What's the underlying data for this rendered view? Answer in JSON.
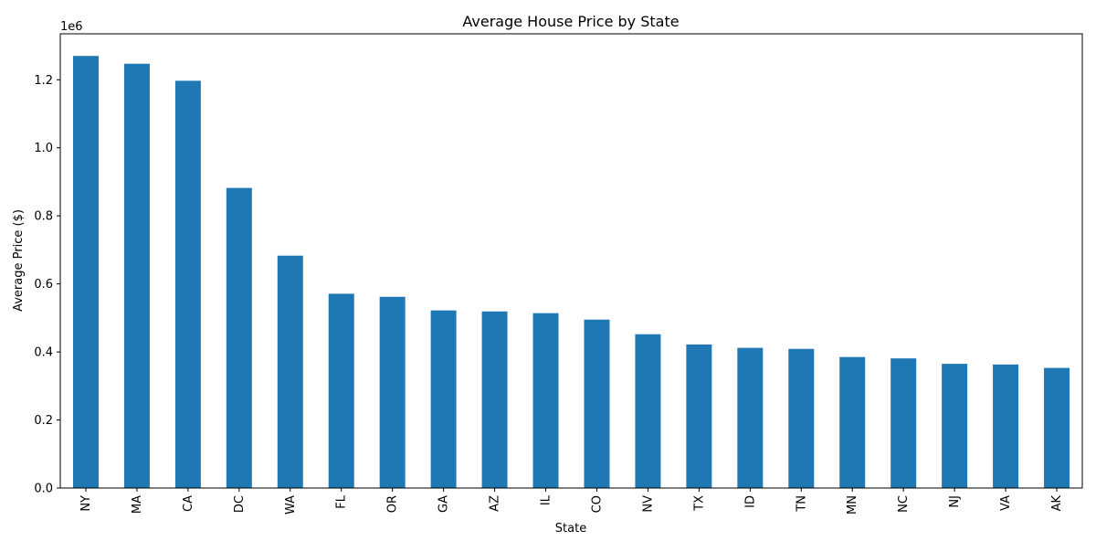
{
  "chart_data": {
    "type": "bar",
    "title": "Average House Price by State",
    "xlabel": "State",
    "ylabel": "Average Price ($)",
    "y_offset_label": "1e6",
    "ylim": [
      0,
      1335000
    ],
    "ytick_values": [
      0,
      200000,
      400000,
      600000,
      800000,
      1000000,
      1200000
    ],
    "ytick_labels": [
      "0.0",
      "0.2",
      "0.4",
      "0.6",
      "0.8",
      "1.0",
      "1.2"
    ],
    "grid": false,
    "bar_color": "#1f77b4",
    "categories": [
      "NY",
      "MA",
      "CA",
      "DC",
      "WA",
      "FL",
      "OR",
      "GA",
      "AZ",
      "IL",
      "CO",
      "NV",
      "TX",
      "ID",
      "TN",
      "MN",
      "NC",
      "NJ",
      "VA",
      "AK"
    ],
    "values": [
      1270000,
      1247000,
      1197000,
      882000,
      683000,
      571000,
      562000,
      522000,
      519000,
      514000,
      495000,
      452000,
      422000,
      412000,
      409000,
      385000,
      381000,
      365000,
      363000,
      353000
    ]
  }
}
